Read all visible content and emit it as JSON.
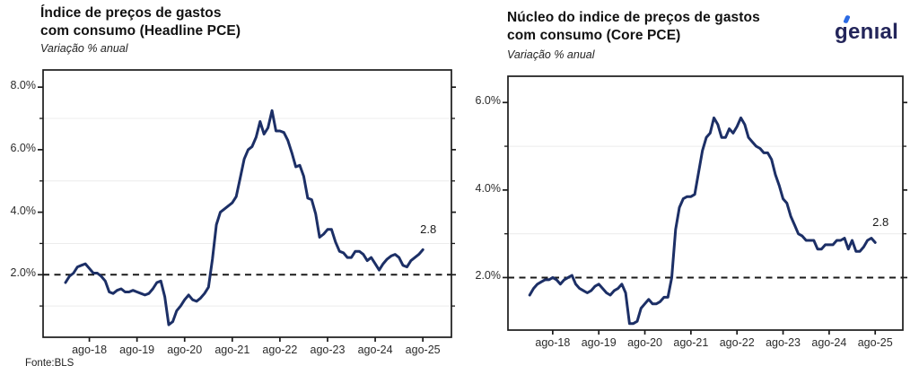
{
  "header": {
    "logo_text": "genıal",
    "logo_color": "#23255a",
    "logo_accent_color": "#2b6ae3"
  },
  "footer": {
    "source": "Fonte:BLS"
  },
  "chart_data": [
    {
      "type": "line",
      "title_lines": [
        "Índice de preços de gastos",
        "com consumo (Headline PCE)"
      ],
      "subtitle": "Variação % anual",
      "series_name": "Headline PCE variação % anual",
      "x_start_month": "fev-18",
      "x_end_month": "ago-25",
      "x_frequency": "mensal",
      "xtick_labels": [
        "ago-18",
        "ago-19",
        "ago-20",
        "ago-21",
        "ago-22",
        "ago-23",
        "ago-24",
        "ago-25"
      ],
      "xtick_month_indices": [
        6,
        18,
        30,
        42,
        54,
        66,
        78,
        90
      ],
      "ytick_values": [
        2,
        4,
        6,
        8
      ],
      "ytick_labels": [
        "2.0%",
        "4.0%",
        "6.0%",
        "8.0%"
      ],
      "minor_grid_values": [
        1,
        3,
        5,
        7
      ],
      "ylim": [
        0,
        8.55
      ],
      "grid": "minor horizontal only",
      "legend": "none",
      "reference_line_value": 2.0,
      "reference_line_style": "dashed black",
      "end_label": "2.8",
      "line_color": "#1c2f66",
      "values": [
        1.75,
        1.95,
        2.05,
        2.25,
        2.3,
        2.35,
        2.2,
        2.05,
        2.05,
        1.95,
        1.8,
        1.45,
        1.4,
        1.5,
        1.55,
        1.45,
        1.45,
        1.5,
        1.45,
        1.4,
        1.35,
        1.4,
        1.55,
        1.75,
        1.8,
        1.3,
        0.4,
        0.5,
        0.85,
        1.0,
        1.2,
        1.35,
        1.2,
        1.15,
        1.25,
        1.4,
        1.6,
        2.5,
        3.6,
        4.0,
        4.1,
        4.2,
        4.3,
        4.5,
        5.1,
        5.7,
        6.0,
        6.1,
        6.4,
        6.9,
        6.5,
        6.7,
        7.25,
        6.6,
        6.6,
        6.55,
        6.3,
        5.9,
        5.45,
        5.5,
        5.15,
        4.45,
        4.4,
        3.95,
        3.2,
        3.3,
        3.45,
        3.45,
        3.05,
        2.75,
        2.7,
        2.55,
        2.55,
        2.75,
        2.75,
        2.65,
        2.45,
        2.55,
        2.35,
        2.15,
        2.35,
        2.5,
        2.6,
        2.65,
        2.55,
        2.3,
        2.25,
        2.45,
        2.55,
        2.65,
        2.8
      ]
    },
    {
      "type": "line",
      "title_lines": [
        "Núcleo do indice de preços de gastos",
        "com consumo (Core PCE)"
      ],
      "subtitle": "Variação % anual",
      "series_name": "Core PCE variação % anual",
      "x_start_month": "fev-18",
      "x_end_month": "ago-25",
      "x_frequency": "mensal",
      "xtick_labels": [
        "ago-18",
        "ago-19",
        "ago-20",
        "ago-21",
        "ago-22",
        "ago-23",
        "ago-24",
        "ago-25"
      ],
      "xtick_month_indices": [
        6,
        18,
        30,
        42,
        54,
        66,
        78,
        90
      ],
      "ytick_values": [
        2,
        4,
        6
      ],
      "ytick_labels": [
        "2.0%",
        "4.0%",
        "6.0%"
      ],
      "minor_grid_values": [
        3,
        5
      ],
      "ylim": [
        0.8,
        6.6
      ],
      "grid": "minor horizontal only",
      "legend": "none",
      "reference_line_value": 2.0,
      "reference_line_style": "dashed black",
      "end_label": "2.8",
      "line_color": "#1c2f66",
      "values": [
        1.6,
        1.75,
        1.85,
        1.9,
        1.95,
        1.95,
        2.0,
        1.95,
        1.85,
        1.95,
        2.0,
        2.05,
        1.85,
        1.75,
        1.7,
        1.65,
        1.7,
        1.8,
        1.85,
        1.75,
        1.65,
        1.6,
        1.7,
        1.75,
        1.85,
        1.65,
        0.95,
        0.95,
        1.0,
        1.3,
        1.4,
        1.5,
        1.4,
        1.4,
        1.45,
        1.55,
        1.55,
        2.0,
        3.1,
        3.6,
        3.8,
        3.85,
        3.85,
        3.9,
        4.4,
        4.9,
        5.2,
        5.3,
        5.65,
        5.5,
        5.2,
        5.2,
        5.4,
        5.3,
        5.45,
        5.65,
        5.5,
        5.2,
        5.1,
        5.0,
        4.95,
        4.85,
        4.85,
        4.7,
        4.35,
        4.1,
        3.8,
        3.7,
        3.4,
        3.2,
        3.0,
        2.95,
        2.85,
        2.85,
        2.85,
        2.65,
        2.65,
        2.75,
        2.75,
        2.75,
        2.85,
        2.85,
        2.9,
        2.65,
        2.85,
        2.6,
        2.6,
        2.7,
        2.85,
        2.9,
        2.8
      ]
    }
  ]
}
